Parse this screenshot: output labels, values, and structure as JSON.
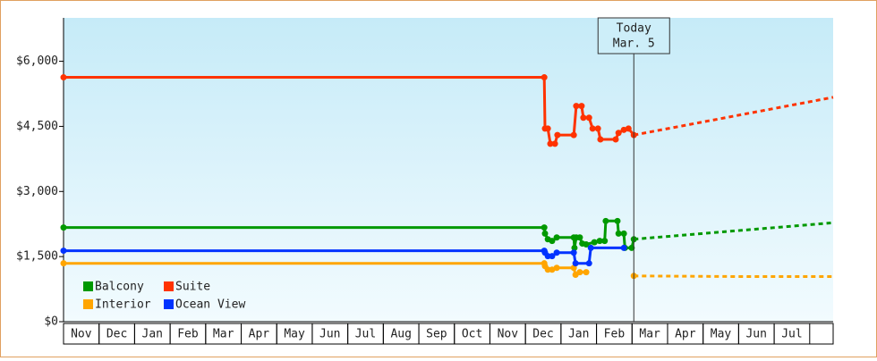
{
  "chart_data": {
    "type": "line",
    "xlim": [
      0,
      21.66
    ],
    "ylim": [
      0,
      7000
    ],
    "yticks": [
      {
        "value": 0,
        "label": "$0"
      },
      {
        "value": 1500,
        "label": "$1,500"
      },
      {
        "value": 3000,
        "label": "$3,000"
      },
      {
        "value": 4500,
        "label": "$4,500"
      },
      {
        "value": 6000,
        "label": "$6,000"
      }
    ],
    "xticks": [
      {
        "value": 0.5,
        "label": "Nov"
      },
      {
        "value": 1.5,
        "label": "Dec"
      },
      {
        "value": 2.5,
        "label": "Jan"
      },
      {
        "value": 3.5,
        "label": "Feb"
      },
      {
        "value": 4.5,
        "label": "Mar"
      },
      {
        "value": 5.5,
        "label": "Apr"
      },
      {
        "value": 6.5,
        "label": "May"
      },
      {
        "value": 7.5,
        "label": "Jun"
      },
      {
        "value": 8.5,
        "label": "Jul"
      },
      {
        "value": 9.5,
        "label": "Aug"
      },
      {
        "value": 10.5,
        "label": "Sep"
      },
      {
        "value": 11.5,
        "label": "Oct"
      },
      {
        "value": 12.5,
        "label": "Nov"
      },
      {
        "value": 13.5,
        "label": "Dec"
      },
      {
        "value": 14.5,
        "label": "Jan"
      },
      {
        "value": 15.5,
        "label": "Feb"
      },
      {
        "value": 16.5,
        "label": "Mar"
      },
      {
        "value": 17.5,
        "label": "Apr"
      },
      {
        "value": 18.5,
        "label": "May"
      },
      {
        "value": 19.5,
        "label": "Jun"
      },
      {
        "value": 20.5,
        "label": "Jul"
      }
    ],
    "today": {
      "x": 16.05,
      "label": "Today",
      "date": "Mar. 5"
    },
    "legend_position": "lower left",
    "series": [
      {
        "name": "Balcony",
        "color": "#009900",
        "x": [
          0,
          13.53,
          13.55,
          13.63,
          13.75,
          13.88,
          14.36,
          14.38,
          14.43,
          14.53,
          14.6,
          14.71,
          14.94,
          15.09,
          15.23,
          15.26,
          15.59,
          15.62,
          15.77,
          15.8,
          15.99,
          16.05
        ],
        "values": [
          2170,
          2170,
          2030,
          1900,
          1860,
          1940,
          1940,
          1700,
          1940,
          1940,
          1800,
          1780,
          1830,
          1860,
          1860,
          2320,
          2320,
          2030,
          2030,
          1700,
          1700,
          1900
        ],
        "forecast_x": [
          16.05,
          21.66
        ],
        "forecast_values": [
          1900,
          2280
        ]
      },
      {
        "name": "Suite",
        "color": "#ff3300",
        "x": [
          0,
          13.53,
          13.55,
          13.63,
          13.7,
          13.83,
          13.9,
          14.36,
          14.43,
          14.58,
          14.63,
          14.79,
          14.89,
          15.04,
          15.11,
          15.54,
          15.62,
          15.77,
          15.9,
          16.05
        ],
        "values": [
          5630,
          5630,
          4450,
          4450,
          4100,
          4100,
          4300,
          4300,
          4970,
          4970,
          4700,
          4700,
          4450,
          4450,
          4200,
          4200,
          4350,
          4420,
          4450,
          4300
        ],
        "forecast_x": [
          16.05,
          21.66
        ],
        "forecast_values": [
          4300,
          5170
        ]
      },
      {
        "name": "Interior",
        "color": "#ffa500",
        "x": [
          0,
          13.53,
          13.55,
          13.63,
          13.75,
          13.88,
          14.36,
          14.41,
          14.53,
          14.71
        ],
        "values": [
          1345,
          1345,
          1280,
          1200,
          1200,
          1240,
          1240,
          1080,
          1140,
          1140
        ],
        "forecast_x": [
          16.05,
          19,
          21.66
        ],
        "forecast_values": [
          1055,
          1040,
          1040
        ]
      },
      {
        "name": "Ocean View",
        "color": "#0033ff",
        "x": [
          0,
          13.53,
          13.55,
          13.63,
          13.75,
          13.88,
          14.36,
          14.41,
          14.53,
          14.79,
          14.84,
          15.77
        ],
        "values": [
          1635,
          1635,
          1590,
          1510,
          1510,
          1590,
          1590,
          1345,
          1345,
          1345,
          1700,
          1700
        ]
      }
    ]
  }
}
